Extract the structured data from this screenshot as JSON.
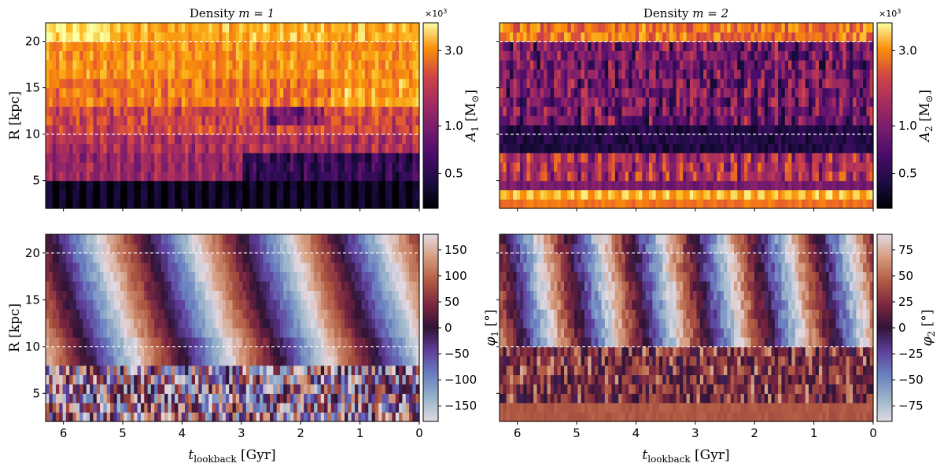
{
  "chart_data": [
    {
      "type": "heatmap",
      "panel": "top-left",
      "title_prefix": "Density ",
      "title_math": "m = 1",
      "ylabel": "R [kpc]",
      "xlabel": "",
      "x_range": [
        6.3,
        0
      ],
      "y_range": [
        2,
        22
      ],
      "x_ticks": [
        "6",
        "5",
        "4",
        "3",
        "2",
        "1",
        "0"
      ],
      "y_ticks": [
        "5",
        "10",
        "15",
        "20"
      ],
      "reference_lines_R": [
        10,
        20
      ],
      "colormap": "inferno",
      "colorbar": {
        "label_main": "A",
        "label_sub": "1",
        "label_unit": " [M",
        "label_unit_sub": "⊙",
        "label_close": "]",
        "scale": "log",
        "range": [
          300,
          4500
        ],
        "ticks": [
          "0.5",
          "1.0",
          "3.0"
        ],
        "multiplier_base": "×10",
        "multiplier_exp": "3"
      }
    },
    {
      "type": "heatmap",
      "panel": "top-right",
      "title_prefix": "Density ",
      "title_math": "m = 2",
      "ylabel": "",
      "xlabel": "",
      "x_range": [
        6.3,
        0
      ],
      "y_range": [
        2,
        22
      ],
      "colormap": "inferno",
      "reference_lines_R": [
        10,
        20
      ],
      "colorbar": {
        "label_main": "A",
        "label_sub": "2",
        "label_unit": " [M",
        "label_unit_sub": "⊙",
        "label_close": "]",
        "scale": "log",
        "range": [
          300,
          4500
        ],
        "ticks": [
          "0.5",
          "1.0",
          "3.0"
        ],
        "multiplier_base": "×10",
        "multiplier_exp": "3"
      }
    },
    {
      "type": "heatmap",
      "panel": "bottom-left",
      "ylabel": "R [kpc]",
      "xlabel_main": "t",
      "xlabel_sub": "lookback",
      "xlabel_unit": " [Gyr]",
      "x_range": [
        6.3,
        0
      ],
      "y_range": [
        2,
        22
      ],
      "x_ticks": [
        "6",
        "5",
        "4",
        "3",
        "2",
        "1",
        "0"
      ],
      "y_ticks": [
        "5",
        "10",
        "15",
        "20"
      ],
      "colormap": "twilight_shifted",
      "reference_lines_R": [
        10,
        20
      ],
      "colorbar": {
        "label_main": "φ",
        "label_sub": "1",
        "label_unit": " [°]",
        "range": [
          -180,
          180
        ],
        "ticks": [
          "150",
          "100",
          "50",
          "0",
          "−50",
          "−100",
          "−150"
        ]
      }
    },
    {
      "type": "heatmap",
      "panel": "bottom-right",
      "xlabel_main": "t",
      "xlabel_sub": "lookback",
      "xlabel_unit": " [Gyr]",
      "x_range": [
        6.3,
        0
      ],
      "y_range": [
        2,
        22
      ],
      "x_ticks": [
        "6",
        "5",
        "4",
        "3",
        "2",
        "1",
        "0"
      ],
      "colormap": "twilight_shifted",
      "reference_lines_R": [
        10,
        20
      ],
      "colorbar": {
        "label_main": "φ",
        "label_sub": "2",
        "label_unit": " [°]",
        "range": [
          -90,
          90
        ],
        "ticks": [
          "75",
          "50",
          "25",
          "0",
          "−25",
          "−50",
          "−75"
        ]
      }
    }
  ]
}
